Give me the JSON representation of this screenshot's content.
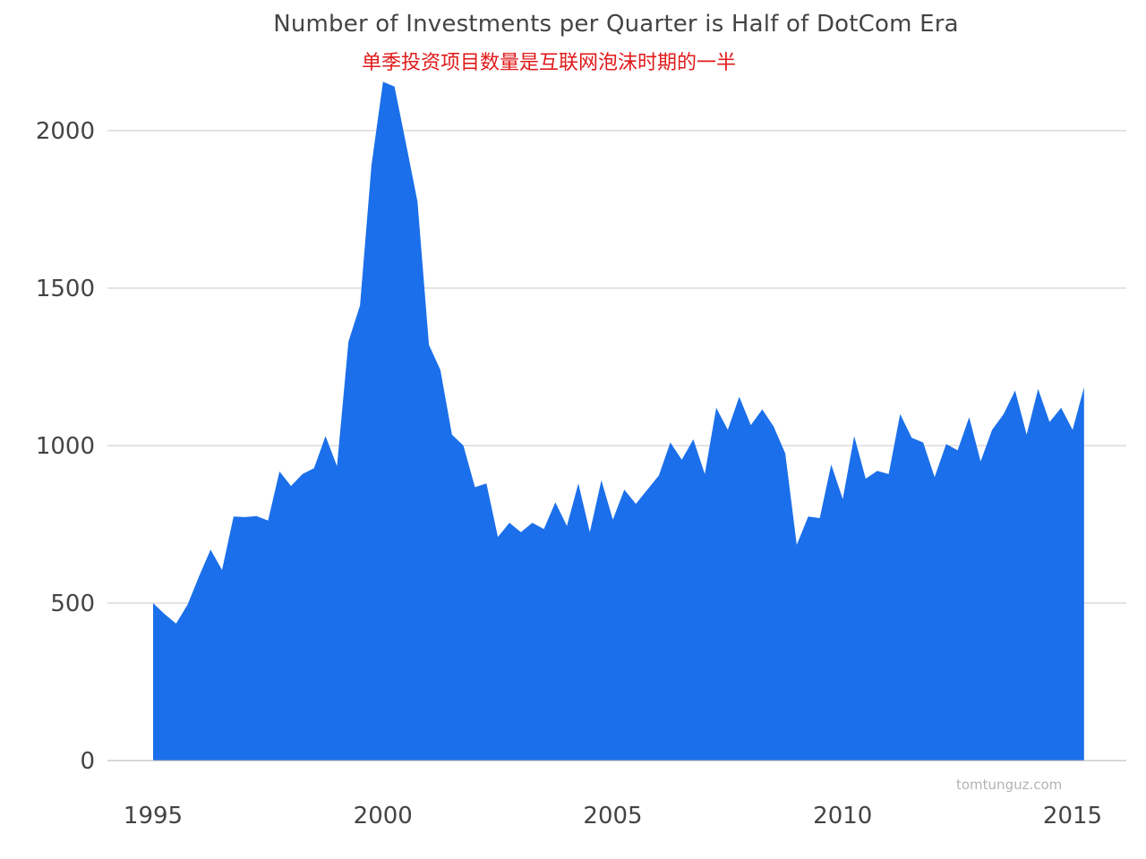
{
  "chart_data": {
    "type": "area",
    "title": "Number of Investments per Quarter is Half of DotCom Era",
    "subtitle": "单季投资项目数量是互联网泡沫时期的一半",
    "xlabel": "",
    "ylabel": "",
    "watermark": "tomtunguz.com",
    "x_ticks": [
      "1995",
      "2000",
      "2005",
      "2010",
      "2015"
    ],
    "y_ticks": [
      "0",
      "500",
      "1000",
      "1500",
      "2000"
    ],
    "xlim": [
      1994.5,
      2016.2
    ],
    "ylim": [
      0,
      2200
    ],
    "grid": true,
    "color": "#1b6fea",
    "x": [
      1995.0,
      1995.25,
      1995.5,
      1995.75,
      1996.0,
      1996.25,
      1996.5,
      1996.75,
      1997.0,
      1997.25,
      1997.5,
      1997.75,
      1998.0,
      1998.25,
      1998.5,
      1998.75,
      1999.0,
      1999.25,
      1999.5,
      1999.75,
      2000.0,
      2000.25,
      2000.5,
      2000.75,
      2001.0,
      2001.25,
      2001.5,
      2001.75,
      2002.0,
      2002.25,
      2002.5,
      2002.75,
      2003.0,
      2003.25,
      2003.5,
      2003.75,
      2004.0,
      2004.25,
      2004.5,
      2004.75,
      2005.0,
      2005.25,
      2005.5,
      2005.75,
      2006.0,
      2006.25,
      2006.5,
      2006.75,
      2007.0,
      2007.25,
      2007.5,
      2007.75,
      2008.0,
      2008.25,
      2008.5,
      2008.75,
      2009.0,
      2009.25,
      2009.5,
      2009.75,
      2010.0,
      2010.25,
      2010.5,
      2010.75,
      2011.0,
      2011.25,
      2011.5,
      2011.75,
      2012.0,
      2012.25,
      2012.5,
      2012.75,
      2013.0,
      2013.25,
      2013.5,
      2013.75,
      2014.0,
      2014.25,
      2014.5,
      2014.75,
      2015.0,
      2015.25
    ],
    "values": [
      500,
      465,
      435,
      495,
      585,
      670,
      605,
      775,
      773,
      776,
      762,
      918,
      872,
      910,
      928,
      1030,
      935,
      1330,
      1445,
      1890,
      2155,
      2140,
      1960,
      1775,
      1320,
      1240,
      1035,
      1000,
      868,
      880,
      710,
      755,
      725,
      755,
      735,
      820,
      745,
      880,
      725,
      890,
      765,
      860,
      815,
      860,
      905,
      1010,
      955,
      1020,
      910,
      1120,
      1050,
      1155,
      1065,
      1115,
      1060,
      975,
      685,
      775,
      770,
      940,
      830,
      1030,
      895,
      920,
      910,
      1100,
      1025,
      1010,
      900,
      1005,
      985,
      1090,
      950,
      1050,
      1100,
      1175,
      1035,
      1180,
      1075,
      1120,
      1050,
      1185
    ]
  }
}
